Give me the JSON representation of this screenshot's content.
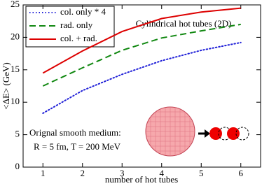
{
  "chart_data": {
    "type": "line",
    "annotation": "Cylindrical hot tubes (2D)",
    "note_lines": [
      "Orignal smooth medium:",
      "R = 5 fm, T = 200 MeV"
    ],
    "x_label": "number of hot tubes",
    "y_label": "<ΔE> (GeV)",
    "x": [
      1,
      2,
      3,
      4,
      5,
      6
    ],
    "series": [
      {
        "name": "col. only * 4",
        "color": "#2020d8",
        "style": "dotted",
        "values": [
          8.3,
          11.8,
          14.3,
          16.4,
          18.0,
          19.2
        ]
      },
      {
        "name": "rad. only",
        "color": "#118811",
        "style": "dashed",
        "values": [
          12.5,
          15.3,
          18.0,
          19.9,
          21.0,
          22.0
        ]
      },
      {
        "name": "col. + rad.",
        "color": "#dd0000",
        "style": "solid",
        "values": [
          14.5,
          17.9,
          20.9,
          22.9,
          23.9,
          24.5
        ]
      }
    ],
    "xlim": [
      0.5,
      6.5
    ],
    "xticks": [
      1,
      2,
      3,
      4,
      5,
      6
    ],
    "ylim": [
      0,
      25
    ],
    "yticks": [
      0,
      5,
      10,
      15,
      20,
      25
    ],
    "legend": "top-left"
  }
}
